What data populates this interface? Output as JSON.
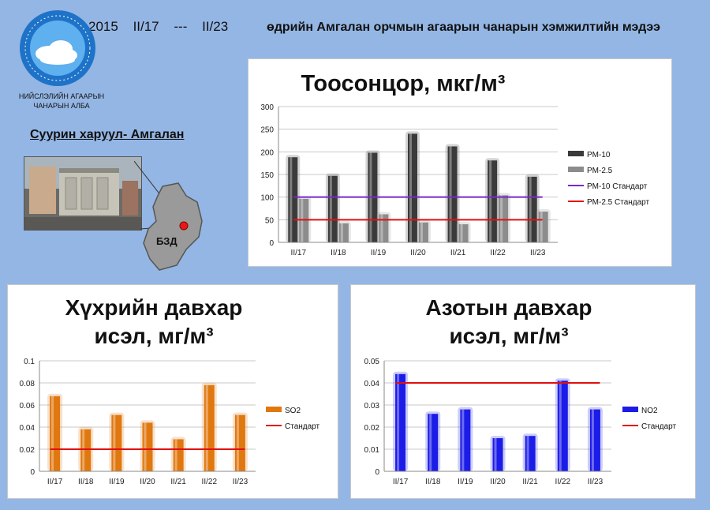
{
  "header": {
    "year": "2015",
    "date_from": "II/17",
    "separator": "---",
    "date_to": "II/23",
    "title": "өдрийн Амгалан орчмын агаарын чанарын хэмжилтийн мэдээ"
  },
  "org": {
    "line1": "НИЙСЛЭЛИЙН АГААРЫН",
    "line2": "ЧАНАРЫН АЛБА"
  },
  "station": {
    "label": "Суурин харуул- Амгалан",
    "district": "БЗД"
  },
  "colors": {
    "background": "#94b6e4",
    "pm10": "#3a3a3a",
    "pm25": "#8c8c8c",
    "pm10_std": "#7a28c8",
    "pm25_std": "#e01010",
    "so2": "#e07810",
    "no2": "#1c1ce8",
    "standard": "#e01010"
  },
  "chart_data": [
    {
      "type": "bar",
      "title": "Тоосонцор, мкг/м³",
      "categories": [
        "II/17",
        "II/18",
        "II/19",
        "II/20",
        "II/21",
        "II/22",
        "II/23"
      ],
      "series": [
        {
          "name": "PM-10",
          "values": [
            188,
            147,
            198,
            240,
            212,
            181,
            145
          ]
        },
        {
          "name": "PM-2.5",
          "values": [
            96,
            42,
            62,
            44,
            40,
            104,
            68
          ]
        }
      ],
      "lines": [
        {
          "name": "PM-10 Стандарт",
          "value": 100
        },
        {
          "name": "PM-2.5 Стандарт",
          "value": 50
        }
      ],
      "yticks": [
        "0",
        "50",
        "100",
        "150",
        "200",
        "250",
        "300"
      ],
      "ylim": [
        0,
        300
      ],
      "grid": true,
      "legend": "right"
    },
    {
      "type": "bar",
      "title": "Хүхрийн давхар исэл, мг/м³",
      "categories": [
        "II/17",
        "II/18",
        "II/19",
        "II/20",
        "II/21",
        "II/22",
        "II/23"
      ],
      "series": [
        {
          "name": "SO2",
          "values": [
            0.068,
            0.038,
            0.051,
            0.044,
            0.029,
            0.078,
            0.051
          ]
        }
      ],
      "lines": [
        {
          "name": "Стандарт",
          "value": 0.02
        }
      ],
      "yticks": [
        "0",
        "0.02",
        "0.04",
        "0.06",
        "0.08",
        "0.1"
      ],
      "ylim": [
        0,
        0.1
      ],
      "grid": true,
      "legend": "right"
    },
    {
      "type": "bar",
      "title": "Азотын давхар исэл, мг/м³",
      "categories": [
        "II/17",
        "II/18",
        "II/19",
        "II/20",
        "II/21",
        "II/22",
        "II/23"
      ],
      "series": [
        {
          "name": "NO2",
          "values": [
            0.044,
            0.026,
            0.028,
            0.015,
            0.016,
            0.041,
            0.028
          ]
        }
      ],
      "lines": [
        {
          "name": "Стандарт",
          "value": 0.04
        }
      ],
      "yticks": [
        "0",
        "0.01",
        "0.02",
        "0.03",
        "0.04",
        "0.05"
      ],
      "ylim": [
        0,
        0.05
      ],
      "grid": true,
      "legend": "right"
    }
  ]
}
